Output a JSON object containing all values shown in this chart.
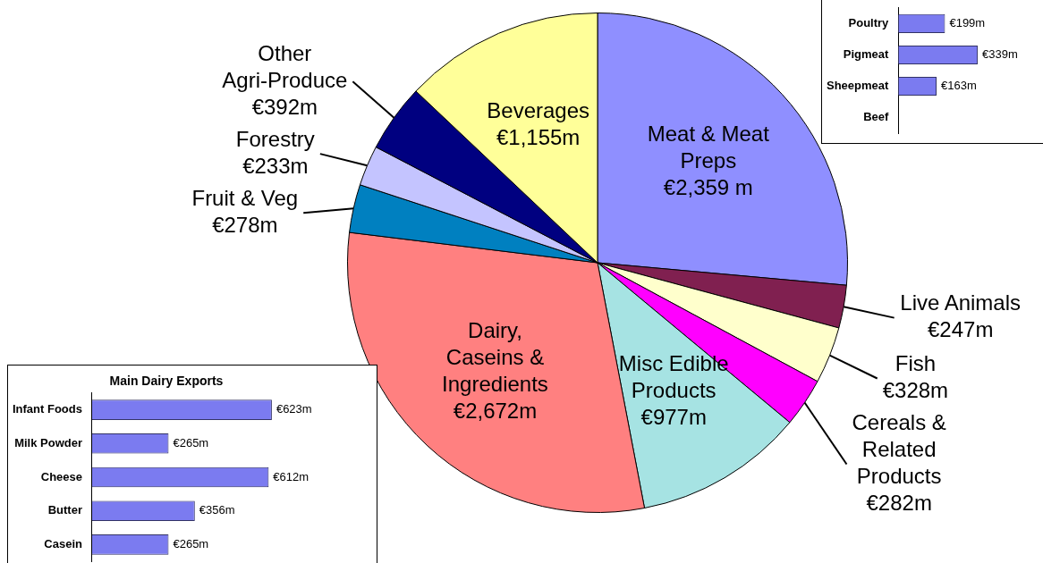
{
  "chart_data": [
    {
      "type": "pie",
      "categories": [
        "Meat & Meat Preps",
        "Live Animals",
        "Fish",
        "Cereals & Related Products",
        "Misc Edible Products",
        "Dairy, Caseins & Ingredients",
        "Fruit & Veg",
        "Forestry",
        "Other Agri-Produce",
        "Beverages"
      ],
      "values": [
        2359,
        247,
        328,
        282,
        977,
        2672,
        278,
        233,
        392,
        1155
      ],
      "value_labels": [
        "€2,359 m",
        "€247m",
        "€328m",
        "€282m",
        "€977m",
        "€2,672m",
        "€278m",
        "€233m",
        "€392m",
        "€1,155m"
      ],
      "colors": [
        "#8f8fff",
        "#802050",
        "#ffffcc",
        "#ff00ff",
        "#a6e3e3",
        "#ff8080",
        "#0080c0",
        "#c4c4ff",
        "#000080",
        "#ffff99"
      ],
      "legend": false
    },
    {
      "type": "bar",
      "orientation": "horizontal",
      "title": "Main Dairy Exports",
      "categories": [
        "Infant Foods",
        "Milk Powder",
        "Cheese",
        "Butter",
        "Casein"
      ],
      "values": [
        623,
        265,
        612,
        356,
        265
      ],
      "value_labels": [
        "€623m",
        "€265m",
        "€612m",
        "€356m",
        "€265m"
      ],
      "color": "#7b7bf0",
      "tick_labels": "y",
      "legend": false
    },
    {
      "type": "bar",
      "orientation": "horizontal",
      "categories": [
        "Poultry",
        "Pigmeat",
        "Sheepmeat",
        "Beef"
      ],
      "values": [
        199,
        339,
        163,
        null
      ],
      "value_labels": [
        "€199m",
        "€339m",
        "€163m",
        null
      ],
      "color": "#7b7bf0",
      "tick_labels": "y",
      "legend": false
    }
  ]
}
